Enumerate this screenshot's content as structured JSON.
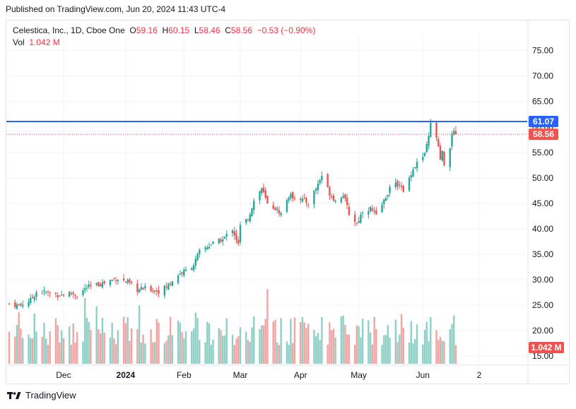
{
  "header": {
    "published_text": "Published on TradingView.com, Jun 20, 2024 11:43 UTC-4"
  },
  "legend": {
    "symbol_line": "Celestica, Inc., 1D, Cboe One",
    "open_label": "O",
    "open_value": "59.16",
    "high_label": "H",
    "high_value": "60.15",
    "low_label": "L",
    "low_value": "58.46",
    "close_label": "C",
    "close_value": "58.56",
    "change_value": "−0.53 (−0.90%)",
    "vol_label": "Vol",
    "vol_value": "1.042 M"
  },
  "footer": {
    "brand": "TradingView",
    "logo_icon": "tradingview-logo-icon"
  },
  "colors": {
    "up": "#26a69a",
    "down": "#ef5350",
    "vol_up": "#8ecfc6",
    "vol_down": "#f0a4a3",
    "hline": "#2962ff",
    "grid": "#f0f3fa"
  },
  "chart_data": {
    "type": "candlestick",
    "symbol": "Celestica, Inc.",
    "interval": "1D",
    "exchange": "Cboe One",
    "y_ticks": [
      75,
      70,
      65,
      60,
      55,
      50,
      45,
      40,
      35,
      30,
      25,
      20,
      15
    ],
    "y_tick_labels": [
      "75.00",
      "70.00",
      "65.00",
      "60.00",
      "55.00",
      "50.00",
      "45.00",
      "40.00",
      "35.00",
      "30.00",
      "25.00",
      "20.00",
      "15.00"
    ],
    "ylim": [
      13.5,
      78
    ],
    "x_tick_labels": [
      {
        "label": "Dec",
        "date": "2023-12-01"
      },
      {
        "label": "2024",
        "date": "2024-01-02"
      },
      {
        "label": "Feb",
        "date": "2024-02-01"
      },
      {
        "label": "Mar",
        "date": "2024-03-01"
      },
      {
        "label": "Apr",
        "date": "2024-04-01"
      },
      {
        "label": "May",
        "date": "2024-05-01"
      },
      {
        "label": "Jun",
        "date": "2024-06-03"
      },
      {
        "label": "2",
        "date": "2024-07-02"
      }
    ],
    "horizontal_line": {
      "value": 61.07,
      "label": "61.07"
    },
    "last_price": {
      "value": 58.56,
      "label": "58.56"
    },
    "last_volume_label": "1.042 M",
    "start_date": "2023-11-03",
    "end_date": "2024-06-20",
    "anchors": [
      [
        "2023-11-03",
        25.3
      ],
      [
        "2023-11-08",
        24.9
      ],
      [
        "2023-11-14",
        26.0
      ],
      [
        "2023-11-17",
        27.6
      ],
      [
        "2023-11-22",
        27.5
      ],
      [
        "2023-11-29",
        27.0
      ],
      [
        "2023-12-05",
        27.4
      ],
      [
        "2023-12-08",
        27.0
      ],
      [
        "2023-12-13",
        28.5
      ],
      [
        "2023-12-18",
        29.0
      ],
      [
        "2023-12-22",
        29.4
      ],
      [
        "2023-12-28",
        30.3
      ],
      [
        "2024-01-03",
        29.5
      ],
      [
        "2024-01-08",
        28.0
      ],
      [
        "2024-01-12",
        28.3
      ],
      [
        "2024-01-19",
        27.8
      ],
      [
        "2024-01-23",
        28.6
      ],
      [
        "2024-01-29",
        31.0
      ],
      [
        "2024-02-02",
        31.8
      ],
      [
        "2024-02-06",
        33.0
      ],
      [
        "2024-02-09",
        35.5
      ],
      [
        "2024-02-15",
        37.0
      ],
      [
        "2024-02-21",
        37.9
      ],
      [
        "2024-02-26",
        40.0
      ],
      [
        "2024-02-29",
        36.9
      ],
      [
        "2024-03-01",
        40.5
      ],
      [
        "2024-03-05",
        42.0
      ],
      [
        "2024-03-08",
        45.5
      ],
      [
        "2024-03-12",
        48.0
      ],
      [
        "2024-03-15",
        44.8
      ],
      [
        "2024-03-19",
        44.0
      ],
      [
        "2024-03-22",
        43.0
      ],
      [
        "2024-03-26",
        46.5
      ],
      [
        "2024-04-01",
        46.0
      ],
      [
        "2024-04-05",
        45.0
      ],
      [
        "2024-04-09",
        48.0
      ],
      [
        "2024-04-12",
        50.5
      ],
      [
        "2024-04-16",
        47.0
      ],
      [
        "2024-04-19",
        45.5
      ],
      [
        "2024-04-23",
        46.8
      ],
      [
        "2024-04-26",
        43.0
      ],
      [
        "2024-04-30",
        41.0
      ],
      [
        "2024-05-03",
        43.5
      ],
      [
        "2024-05-07",
        44.0
      ],
      [
        "2024-05-10",
        42.5
      ],
      [
        "2024-05-14",
        45.5
      ],
      [
        "2024-05-17",
        48.0
      ],
      [
        "2024-05-22",
        49.0
      ],
      [
        "2024-05-24",
        47.0
      ],
      [
        "2024-05-28",
        51.0
      ],
      [
        "2024-05-31",
        53.0
      ],
      [
        "2024-06-04",
        54.5
      ],
      [
        "2024-06-06",
        58.0
      ],
      [
        "2024-06-07",
        60.5
      ],
      [
        "2024-06-10",
        58.0
      ],
      [
        "2024-06-12",
        53.5
      ],
      [
        "2024-06-13",
        55.0
      ],
      [
        "2024-06-14",
        52.0
      ],
      [
        "2024-06-17",
        56.0
      ],
      [
        "2024-06-18",
        59.0
      ],
      [
        "2024-06-20",
        58.56
      ]
    ]
  }
}
